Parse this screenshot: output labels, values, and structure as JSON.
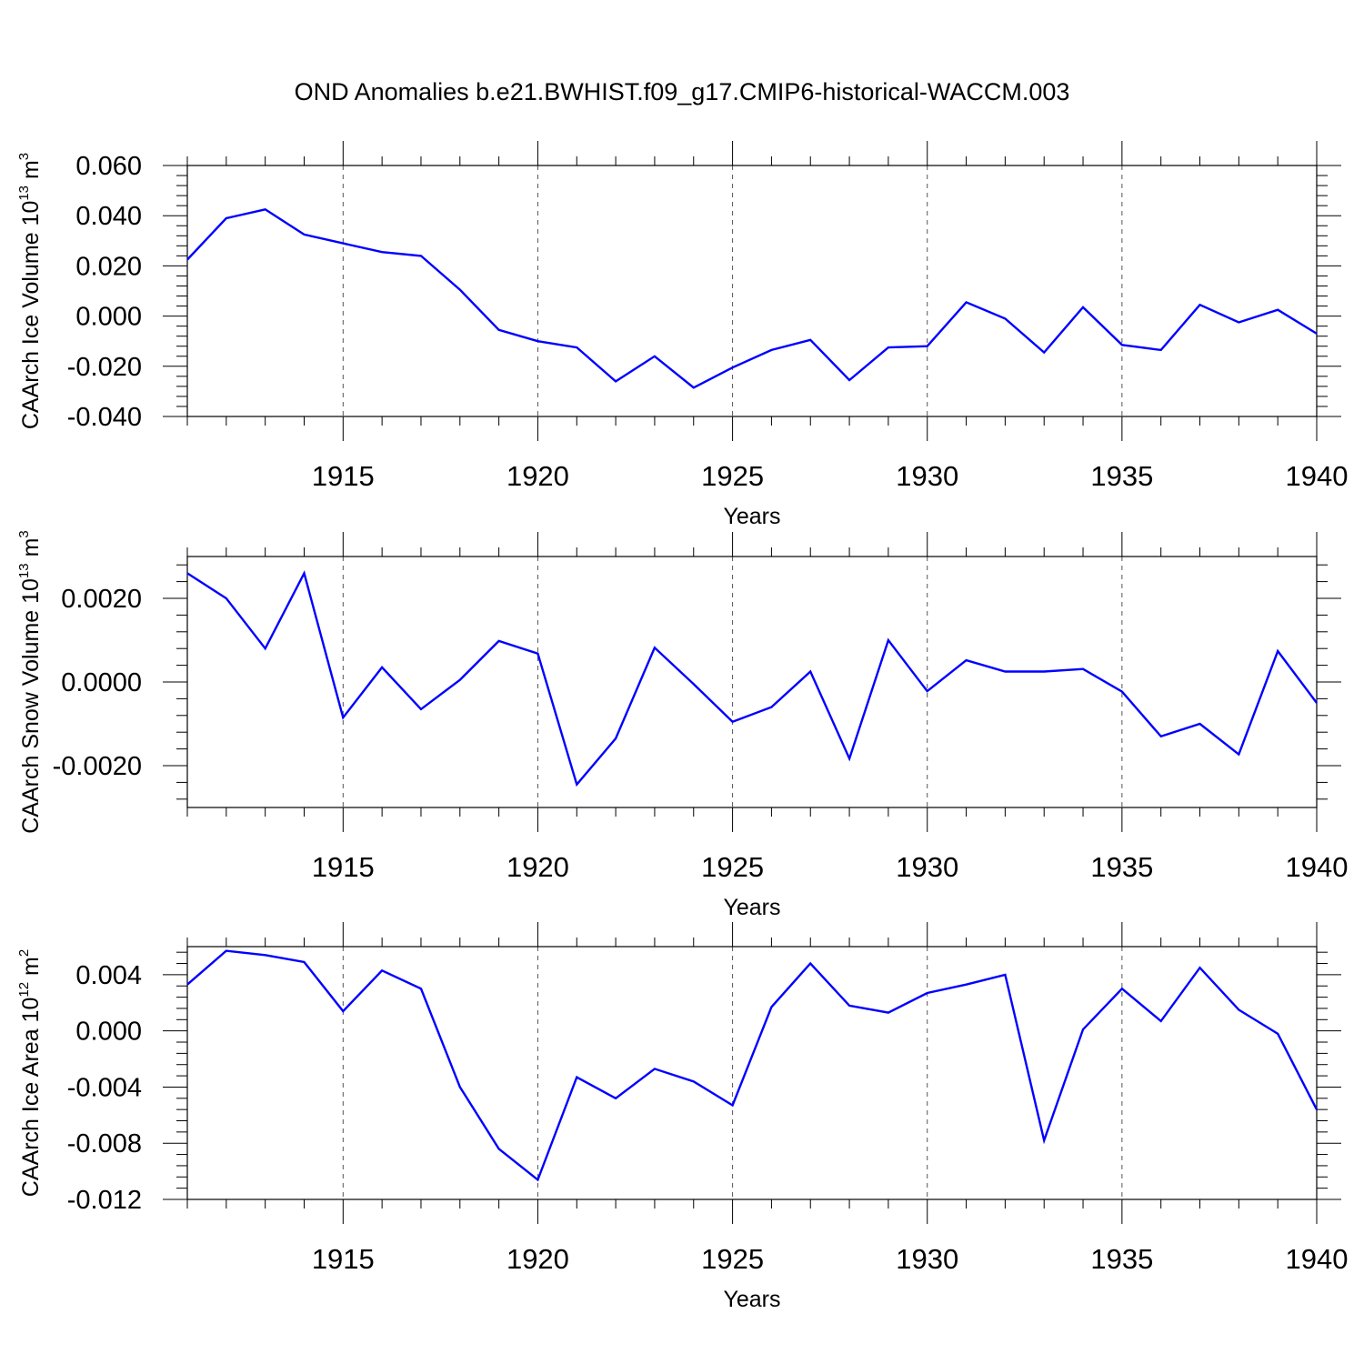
{
  "title": "OND Anomalies b.e21.BWHIST.f09_g17.CMIP6-historical-WACCM.003",
  "colors": {
    "line": "#0000ff",
    "axis": "#000000",
    "grid": "#555555"
  },
  "chart_data": [
    {
      "type": "line",
      "xlabel": "Years",
      "ylabel_main": "CAArch Ice Volume 10",
      "ylabel_exp": "13",
      "ylabel_unit": " m",
      "ylabel_unit_exp": "3",
      "xlim": [
        1911,
        1940
      ],
      "ylim": [
        -0.04,
        0.06
      ],
      "yticks": [
        -0.04,
        -0.02,
        0.0,
        0.02,
        0.04,
        0.06
      ],
      "yticklabels": [
        "-0.040",
        "-0.020",
        "0.000",
        "0.020",
        "0.040",
        "0.060"
      ],
      "xticks": [
        1915,
        1920,
        1925,
        1930,
        1935,
        1940
      ],
      "xticklabels": [
        "1915",
        "1920",
        "1925",
        "1930",
        "1935",
        "1940"
      ],
      "x": [
        1911,
        1912,
        1913,
        1914,
        1915,
        1916,
        1917,
        1918,
        1919,
        1920,
        1921,
        1922,
        1923,
        1924,
        1925,
        1926,
        1927,
        1928,
        1929,
        1930,
        1931,
        1932,
        1933,
        1934,
        1935,
        1936,
        1937,
        1938,
        1939,
        1940
      ],
      "values": [
        0.0225,
        0.039,
        0.0425,
        0.0325,
        0.029,
        0.0255,
        0.024,
        0.0105,
        -0.0055,
        -0.01,
        -0.0125,
        -0.026,
        -0.016,
        -0.0285,
        -0.0205,
        -0.0135,
        -0.0095,
        -0.0255,
        -0.0125,
        -0.012,
        0.0055,
        -0.001,
        -0.0145,
        0.0035,
        -0.0115,
        -0.0135,
        0.0045,
        -0.0025,
        0.0025,
        -0.007
      ]
    },
    {
      "type": "line",
      "xlabel": "Years",
      "ylabel_main": "CAArch Snow Volume 10",
      "ylabel_exp": "13",
      "ylabel_unit": " m",
      "ylabel_unit_exp": "3",
      "xlim": [
        1911,
        1940
      ],
      "ylim": [
        -0.003,
        0.003
      ],
      "yticks": [
        -0.002,
        0.0,
        0.002
      ],
      "yticklabels": [
        "-0.0020",
        "0.0000",
        "0.0020"
      ],
      "xticks": [
        1915,
        1920,
        1925,
        1930,
        1935,
        1940
      ],
      "xticklabels": [
        "1915",
        "1920",
        "1925",
        "1930",
        "1935",
        "1940"
      ],
      "x": [
        1911,
        1912,
        1913,
        1914,
        1915,
        1916,
        1917,
        1918,
        1919,
        1920,
        1921,
        1922,
        1923,
        1924,
        1925,
        1926,
        1927,
        1928,
        1929,
        1930,
        1931,
        1932,
        1933,
        1934,
        1935,
        1936,
        1937,
        1938,
        1939,
        1940
      ],
      "values": [
        0.0026,
        0.002,
        0.0008,
        0.0026,
        -0.00085,
        0.00035,
        -0.00065,
        5e-05,
        0.00098,
        0.00068,
        -0.00245,
        -0.00135,
        0.00082,
        -5e-05,
        -0.00095,
        -0.0006,
        0.00025,
        -0.00183,
        0.001,
        -0.00022,
        0.00052,
        0.00025,
        0.00025,
        0.00031,
        -0.00023,
        -0.0013,
        -0.001,
        -0.00173,
        0.00074,
        -0.0005
      ]
    },
    {
      "type": "line",
      "xlabel": "Years",
      "ylabel_main": "CAArch Ice Area 10",
      "ylabel_exp": "12",
      "ylabel_unit": " m",
      "ylabel_unit_exp": "2",
      "xlim": [
        1911,
        1940
      ],
      "ylim": [
        -0.012,
        0.006
      ],
      "yticks": [
        -0.012,
        -0.008,
        -0.004,
        0.0,
        0.004
      ],
      "yticklabels": [
        "-0.012",
        "-0.008",
        "-0.004",
        "0.000",
        "0.004"
      ],
      "xticks": [
        1915,
        1920,
        1925,
        1930,
        1935,
        1940
      ],
      "xticklabels": [
        "1915",
        "1920",
        "1925",
        "1930",
        "1935",
        "1940"
      ],
      "x": [
        1911,
        1912,
        1913,
        1914,
        1915,
        1916,
        1917,
        1918,
        1919,
        1920,
        1921,
        1922,
        1923,
        1924,
        1925,
        1926,
        1927,
        1928,
        1929,
        1930,
        1931,
        1932,
        1933,
        1934,
        1935,
        1936,
        1937,
        1938,
        1939,
        1940
      ],
      "values": [
        0.0033,
        0.0057,
        0.0054,
        0.0049,
        0.0014,
        0.0043,
        0.003,
        -0.004,
        -0.0084,
        -0.0106,
        -0.0033,
        -0.0048,
        -0.0027,
        -0.0036,
        -0.0053,
        0.0017,
        0.0048,
        0.0018,
        0.0013,
        0.0027,
        0.0033,
        0.004,
        -0.0078,
        0.0001,
        0.003,
        0.0007,
        0.0045,
        0.0015,
        -0.0002,
        -0.0056
      ]
    }
  ]
}
